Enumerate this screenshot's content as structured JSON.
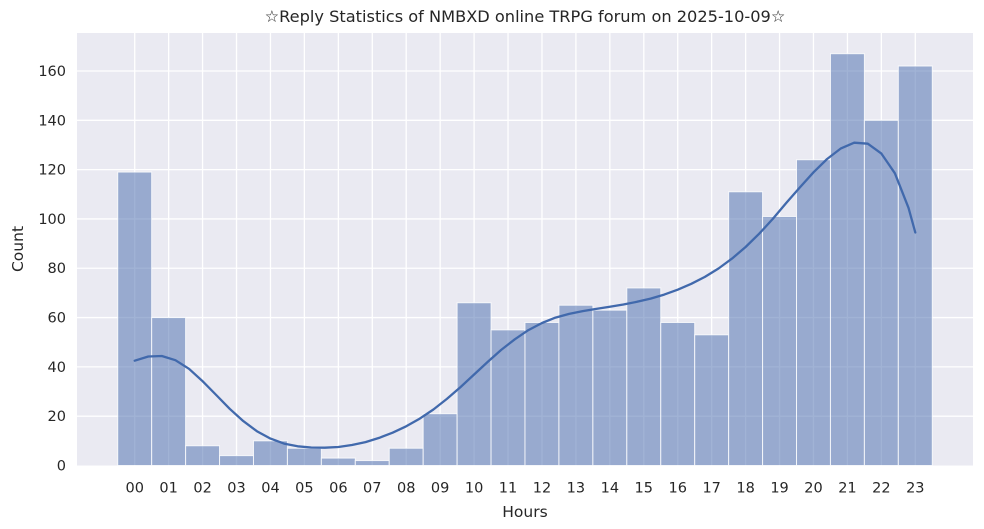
{
  "chart_data": {
    "type": "bar",
    "subtype": "histogram_with_kde",
    "title": "☆Reply Statistics of NMBXD online TRPG forum on 2025-10-09☆",
    "xlabel": "Hours",
    "ylabel": "Count",
    "categories": [
      "00",
      "01",
      "02",
      "03",
      "04",
      "05",
      "06",
      "07",
      "08",
      "09",
      "10",
      "11",
      "12",
      "13",
      "14",
      "15",
      "16",
      "17",
      "18",
      "19",
      "20",
      "21",
      "22",
      "23"
    ],
    "values": [
      119,
      60,
      8,
      4,
      10,
      7,
      3,
      2,
      7,
      21,
      66,
      55,
      58,
      65,
      63,
      72,
      58,
      53,
      111,
      101,
      124,
      167,
      140,
      162
    ],
    "yticks": [
      0,
      20,
      40,
      60,
      80,
      100,
      120,
      140,
      160
    ],
    "ylim": [
      0,
      175.4
    ],
    "xlim": [
      -1.7,
      24.7
    ],
    "grid": true,
    "legend": null,
    "kde_curve": {
      "x": [
        0,
        0.4,
        0.8,
        1.2,
        1.6,
        2,
        2.4,
        2.8,
        3.2,
        3.6,
        4,
        4.4,
        4.8,
        5.2,
        5.6,
        6,
        6.4,
        6.8,
        7.2,
        7.6,
        8,
        8.4,
        8.8,
        9.2,
        9.6,
        10,
        10.4,
        10.8,
        11.2,
        11.6,
        12,
        12.4,
        12.8,
        13.2,
        13.6,
        14,
        14.4,
        14.8,
        15.2,
        15.6,
        16,
        16.4,
        16.8,
        17.2,
        17.6,
        18,
        18.4,
        18.8,
        19.2,
        19.6,
        20,
        20.4,
        20.8,
        21.2,
        21.6,
        22,
        22.4,
        22.8,
        23
      ],
      "y": [
        42.5,
        44.2,
        44.4,
        42.7,
        39.2,
        34.2,
        28.6,
        23.0,
        18.0,
        13.9,
        10.9,
        8.9,
        7.8,
        7.3,
        7.2,
        7.5,
        8.3,
        9.5,
        11.2,
        13.3,
        15.9,
        19.0,
        22.7,
        27.0,
        31.8,
        36.9,
        42.0,
        46.9,
        51.2,
        54.9,
        57.8,
        60.0,
        61.5,
        62.6,
        63.5,
        64.4,
        65.3,
        66.4,
        67.7,
        69.3,
        71.3,
        73.7,
        76.5,
        79.9,
        83.9,
        88.6,
        94.0,
        100.0,
        106.5,
        112.8,
        118.9,
        124.3,
        128.5,
        130.9,
        130.5,
        126.5,
        118.5,
        104.5,
        94.5
      ]
    },
    "colors": {
      "page_bg": "#ffffff",
      "plot_bg": "#eaeaf2",
      "grid": "#ffffff",
      "bar": "#5a7ab5",
      "bar_opacity": "0.57",
      "bar_edge": "#ffffff",
      "kde_line": "#4169ac",
      "text": "#262626"
    }
  }
}
